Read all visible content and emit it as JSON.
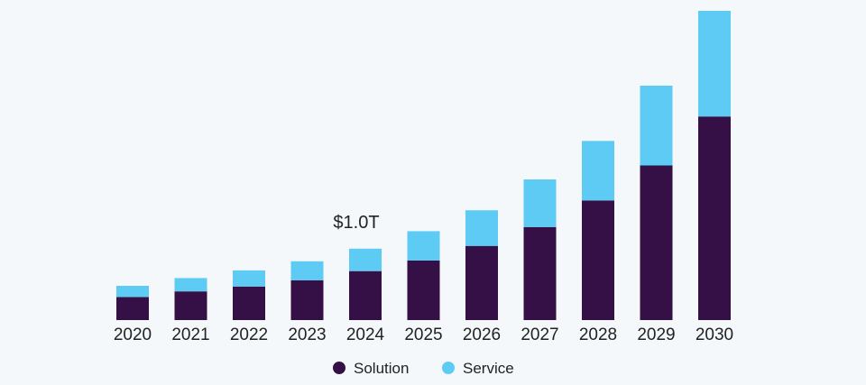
{
  "chart_data": {
    "type": "bar",
    "stacked": true,
    "title": "",
    "xlabel": "",
    "ylabel": "",
    "categories": [
      "2020",
      "2021",
      "2022",
      "2023",
      "2024",
      "2025",
      "2026",
      "2027",
      "2028",
      "2029",
      "2030"
    ],
    "series": [
      {
        "name": "Solution",
        "color": "#341046",
        "values": [
          0.33,
          0.41,
          0.48,
          0.57,
          0.7,
          0.85,
          1.06,
          1.33,
          1.71,
          2.21,
          2.91
        ]
      },
      {
        "name": "Service",
        "color": "#5ecbf5",
        "values": [
          0.16,
          0.19,
          0.23,
          0.27,
          0.32,
          0.42,
          0.51,
          0.68,
          0.85,
          1.14,
          1.51
        ]
      }
    ],
    "ylim": [
      0,
      4.42
    ],
    "grid": false,
    "legend": {
      "position": "bottom-center",
      "entries": [
        "Solution",
        "Service"
      ]
    },
    "annotations": [
      {
        "category": "2024",
        "text": "$1.0T"
      }
    ]
  }
}
